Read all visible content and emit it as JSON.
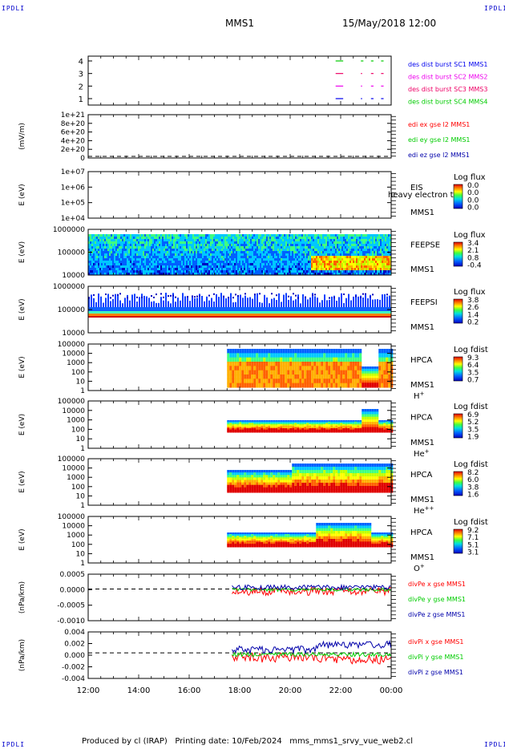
{
  "header": {
    "corner_label": "IPDLI",
    "mission": "MMS1",
    "datetime": "15/May/2018 12:00"
  },
  "footer": {
    "produced_by": "Produced by cl (IRAP)",
    "printing_date": "Printing date: 10/Feb/2024",
    "file": "mms_mms1_srvy_vue_web2.cl"
  },
  "time_axis": {
    "ticks": [
      "12:00",
      "14:00",
      "16:00",
      "18:00",
      "20:00",
      "22:00",
      "00:00"
    ],
    "start_hour": 12,
    "end_hour": 24
  },
  "colors": {
    "red": "#ff0000",
    "green": "#00cc00",
    "blue": "#0000ff",
    "magenta": "#ee00ee",
    "dark_blue": "#0000aa"
  },
  "chart_data": [
    {
      "id": "burst",
      "type": "line",
      "yticks": [
        "4",
        "3",
        "2",
        "1"
      ],
      "ylim": [
        0.5,
        4.5
      ],
      "legend": [
        {
          "label": "des dist burst SC1 MMS1",
          "color": "#0000ee"
        },
        {
          "label": "des dist burst SC2 MMS2",
          "color": "#ee00ee"
        },
        {
          "label": "des dist burst SC3 MMS3",
          "color": "#ee0066"
        },
        {
          "label": "des dist burst SC4 MMS4",
          "color": "#00cc00"
        }
      ],
      "series": [
        {
          "level": 4,
          "color": "#00cc00",
          "intervals": [
            [
              21.8,
              22.1
            ],
            [
              22.8,
              22.9
            ],
            [
              23.2,
              23.3
            ],
            [
              23.6,
              23.7
            ]
          ]
        },
        {
          "level": 3,
          "color": "#ee0066",
          "intervals": [
            [
              21.8,
              22.1
            ],
            [
              22.8,
              22.85
            ],
            [
              23.2,
              23.3
            ],
            [
              23.6,
              23.7
            ]
          ]
        },
        {
          "level": 2,
          "color": "#ee00ee",
          "intervals": [
            [
              21.8,
              22.1
            ],
            [
              22.8,
              22.85
            ],
            [
              23.2,
              23.3
            ],
            [
              23.6,
              23.7
            ]
          ]
        },
        {
          "level": 1,
          "color": "#0000ee",
          "intervals": [
            [
              21.8,
              22.1
            ],
            [
              22.8,
              22.85
            ],
            [
              23.2,
              23.3
            ],
            [
              23.6,
              23.7
            ]
          ]
        }
      ]
    },
    {
      "id": "edi",
      "type": "line",
      "ylabel": "(mV/m)",
      "yticks": [
        "1e+21",
        "8e+20",
        "6e+20",
        "4e+20",
        "2e+20",
        "0"
      ],
      "ylim": [
        0,
        1e+21
      ],
      "legend": [
        {
          "label": "edi ex gse l2 MMS1",
          "color": "#ff0000"
        },
        {
          "label": "edi ey gse l2 MMS1",
          "color": "#00cc00"
        },
        {
          "label": "edi ez gse l2 MMS1",
          "color": "#0000aa"
        }
      ]
    },
    {
      "id": "eis",
      "type": "heatmap",
      "ylabel": "E (eV)",
      "yticks": [
        "1e+07",
        "1e+06",
        "1e+05",
        "1e+04"
      ],
      "instrument": "EIS",
      "spacecraft": "MMS1",
      "overlay_text": "heavy electron to",
      "colorbar_title": "Log flux",
      "colorbar_ticks": [
        "0.0",
        "0.0",
        "0.0",
        "0.0"
      ]
    },
    {
      "id": "feepse",
      "type": "heatmap",
      "ylabel": "E (eV)",
      "yticks": [
        "1000000",
        "100000",
        "10000"
      ],
      "instrument": "FEEPSE",
      "spacecraft": "MMS1",
      "colorbar_title": "Log flux",
      "colorbar_ticks": [
        "3.4",
        "2.1",
        "0.8",
        "-0.4"
      ]
    },
    {
      "id": "feepsi",
      "type": "heatmap",
      "ylabel": "E (eV)",
      "yticks": [
        "1000000",
        "100000",
        "10000"
      ],
      "instrument": "FEEPSI",
      "spacecraft": "MMS1",
      "colorbar_title": "Log flux",
      "colorbar_ticks": [
        "3.8",
        "2.6",
        "1.4",
        "0.2"
      ]
    },
    {
      "id": "hpca-h",
      "type": "heatmap",
      "ylabel": "E (eV)",
      "yticks": [
        "100000",
        "10000",
        "1000",
        "100",
        "10",
        "1"
      ],
      "instrument": "HPCA",
      "spacecraft": "MMS1",
      "species": "H",
      "species_sup": "+",
      "colorbar_title": "Log fdist",
      "colorbar_ticks": [
        "9.3",
        "6.4",
        "3.5",
        "0.7"
      ]
    },
    {
      "id": "hpca-he",
      "type": "heatmap",
      "ylabel": "E (eV)",
      "yticks": [
        "100000",
        "10000",
        "1000",
        "100",
        "10",
        "1"
      ],
      "instrument": "HPCA",
      "spacecraft": "MMS1",
      "species": "He",
      "species_sup": "+",
      "colorbar_title": "Log fdist",
      "colorbar_ticks": [
        "6.9",
        "5.2",
        "3.5",
        "1.9"
      ]
    },
    {
      "id": "hpca-he2",
      "type": "heatmap",
      "ylabel": "E (eV)",
      "yticks": [
        "100000",
        "10000",
        "1000",
        "100",
        "10",
        "1"
      ],
      "instrument": "HPCA",
      "spacecraft": "MMS1",
      "species": "He",
      "species_sup": "++",
      "colorbar_title": "Log fdist",
      "colorbar_ticks": [
        "8.2",
        "6.0",
        "3.8",
        "1.6"
      ]
    },
    {
      "id": "hpca-o",
      "type": "heatmap",
      "ylabel": "E (eV)",
      "yticks": [
        "100000",
        "10000",
        "1000",
        "100",
        "10",
        "1"
      ],
      "instrument": "HPCA",
      "spacecraft": "MMS1",
      "species": "O",
      "species_sup": "+",
      "colorbar_title": "Log fdist",
      "colorbar_ticks": [
        "9.2",
        "7.1",
        "5.1",
        "3.1"
      ]
    },
    {
      "id": "divpe",
      "type": "line",
      "ylabel": "(nPa/km)",
      "yticks": [
        "0.0005",
        "0.0000",
        "-0.0005",
        "-0.0010"
      ],
      "ylim": [
        -0.0015,
        0.0007
      ],
      "legend": [
        {
          "label": "divPe x gse MMS1",
          "color": "#ff0000"
        },
        {
          "label": "divPe y gse MMS1",
          "color": "#00cc00"
        },
        {
          "label": "divPe z gse MMS1",
          "color": "#0000aa"
        }
      ]
    },
    {
      "id": "divpi",
      "type": "line",
      "ylabel": "(nPa/km)",
      "yticks": [
        "0.004",
        "0.002",
        "0.000",
        "-0.002",
        "-0.004"
      ],
      "ylim": [
        -0.0055,
        0.0045
      ],
      "legend": [
        {
          "label": "divPi x gse MMS1",
          "color": "#ff0000"
        },
        {
          "label": "divPi y gse MMS1",
          "color": "#00cc00"
        },
        {
          "label": "divPi z gse MMS1",
          "color": "#0000aa"
        }
      ]
    }
  ]
}
